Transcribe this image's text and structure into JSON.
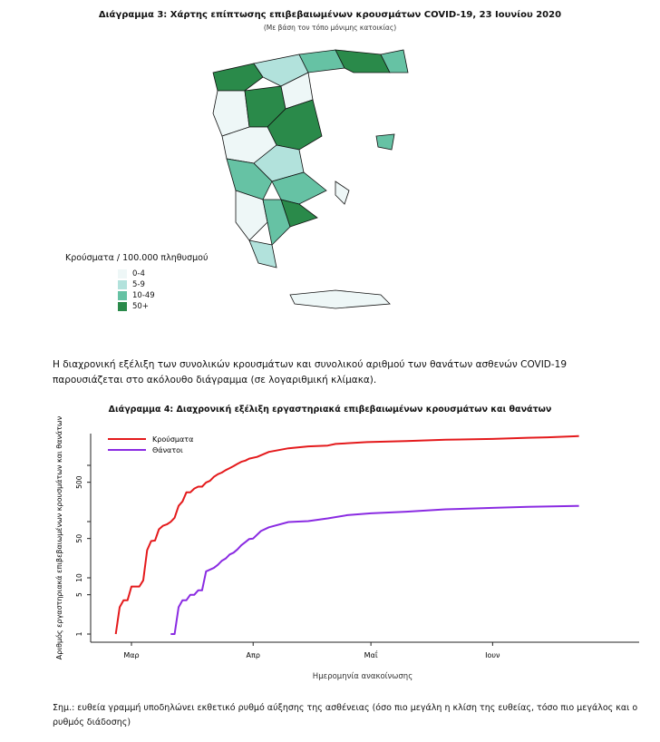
{
  "map_figure": {
    "title": "Διάγραμμα 3: Χάρτης επίπτωσης επιβεβαιωμένων κρουσμάτων COVID-19, 23 Ιουνίου 2020",
    "subtitle": "(Με βάση τον τόπο μόνιμης κατοικίας)",
    "legend_title": "Κρούσματα / 100.000 πληθυσμού",
    "legend": [
      {
        "label": "0-4",
        "color": "#eef7f7"
      },
      {
        "label": "5-9",
        "color": "#b2e2dc"
      },
      {
        "label": "10-49",
        "color": "#66c2a4"
      },
      {
        "label": "50+",
        "color": "#2a8a4a"
      }
    ]
  },
  "paragraph": "Η διαχρονική εξέλιξη των συνολικών κρουσμάτων και συνολικού αριθμού των θανάτων ασθενών COVID-19 παρουσιάζεται στο ακόλουθο διάγραμμα (σε λογαριθμική κλίμακα).",
  "chart_data": {
    "type": "line",
    "title": "Διάγραμμα 4: Διαχρονική εξέλιξη εργαστηριακά επιβεβαιωμένων κρουσμάτων και θανάτων",
    "xlabel": "Ημερομηνία ανακοίνωσης",
    "ylabel": "Αριθμός εργαστηριακά επιβεβαιωμένων κρουσμάτων και θανάτων",
    "y_scale": "log",
    "y_ticks": [
      1,
      5,
      10,
      50,
      100,
      500,
      1000
    ],
    "y_tick_labels": [
      "1",
      "5",
      "10",
      "50",
      "",
      "500",
      ""
    ],
    "x_ticks": [
      "2020-03-01",
      "2020-04-01",
      "2020-05-01",
      "2020-06-01"
    ],
    "x_tick_labels": [
      "Μαρ",
      "Απρ",
      "Μαΐ",
      "Ιουν"
    ],
    "legend_position": "top-left",
    "grid": false,
    "series": [
      {
        "name": "Κρούσματα",
        "color": "#e41a1c",
        "points": [
          [
            "2020-02-26",
            1
          ],
          [
            "2020-02-27",
            3
          ],
          [
            "2020-02-28",
            4
          ],
          [
            "2020-02-29",
            4
          ],
          [
            "2020-03-01",
            7
          ],
          [
            "2020-03-03",
            7
          ],
          [
            "2020-03-04",
            9
          ],
          [
            "2020-03-05",
            31
          ],
          [
            "2020-03-06",
            45
          ],
          [
            "2020-03-07",
            46
          ],
          [
            "2020-03-08",
            73
          ],
          [
            "2020-03-09",
            84
          ],
          [
            "2020-03-10",
            89
          ],
          [
            "2020-03-11",
            99
          ],
          [
            "2020-03-12",
            117
          ],
          [
            "2020-03-13",
            190
          ],
          [
            "2020-03-14",
            228
          ],
          [
            "2020-03-15",
            331
          ],
          [
            "2020-03-16",
            331
          ],
          [
            "2020-03-17",
            387
          ],
          [
            "2020-03-18",
            418
          ],
          [
            "2020-03-19",
            418
          ],
          [
            "2020-03-20",
            495
          ],
          [
            "2020-03-21",
            530
          ],
          [
            "2020-03-22",
            624
          ],
          [
            "2020-03-23",
            695
          ],
          [
            "2020-03-24",
            743
          ],
          [
            "2020-03-25",
            821
          ],
          [
            "2020-03-26",
            892
          ],
          [
            "2020-03-27",
            966
          ],
          [
            "2020-03-28",
            1061
          ],
          [
            "2020-03-29",
            1156
          ],
          [
            "2020-03-30",
            1212
          ],
          [
            "2020-03-31",
            1314
          ],
          [
            "2020-04-02",
            1415
          ],
          [
            "2020-04-05",
            1735
          ],
          [
            "2020-04-10",
            2011
          ],
          [
            "2020-04-15",
            2170
          ],
          [
            "2020-04-20",
            2245
          ],
          [
            "2020-04-22",
            2401
          ],
          [
            "2020-04-30",
            2591
          ],
          [
            "2020-05-10",
            2710
          ],
          [
            "2020-05-20",
            2850
          ],
          [
            "2020-06-01",
            2952
          ],
          [
            "2020-06-10",
            3088
          ],
          [
            "2020-06-15",
            3148
          ],
          [
            "2020-06-23",
            3302
          ]
        ]
      },
      {
        "name": "Θάνατοι",
        "color": "#8a2be2",
        "points": [
          [
            "2020-03-11",
            1
          ],
          [
            "2020-03-12",
            1
          ],
          [
            "2020-03-13",
            3
          ],
          [
            "2020-03-14",
            4
          ],
          [
            "2020-03-15",
            4
          ],
          [
            "2020-03-16",
            5
          ],
          [
            "2020-03-17",
            5
          ],
          [
            "2020-03-18",
            6
          ],
          [
            "2020-03-19",
            6
          ],
          [
            "2020-03-20",
            13
          ],
          [
            "2020-03-22",
            15
          ],
          [
            "2020-03-23",
            17
          ],
          [
            "2020-03-24",
            20
          ],
          [
            "2020-03-25",
            22
          ],
          [
            "2020-03-26",
            26
          ],
          [
            "2020-03-27",
            28
          ],
          [
            "2020-03-28",
            32
          ],
          [
            "2020-03-29",
            38
          ],
          [
            "2020-03-30",
            43
          ],
          [
            "2020-03-31",
            49
          ],
          [
            "2020-04-01",
            50
          ],
          [
            "2020-04-03",
            68
          ],
          [
            "2020-04-05",
            79
          ],
          [
            "2020-04-10",
            98
          ],
          [
            "2020-04-15",
            102
          ],
          [
            "2020-04-20",
            114
          ],
          [
            "2020-04-25",
            130
          ],
          [
            "2020-05-01",
            140
          ],
          [
            "2020-05-10",
            150
          ],
          [
            "2020-05-20",
            165
          ],
          [
            "2020-06-01",
            175
          ],
          [
            "2020-06-10",
            183
          ],
          [
            "2020-06-23",
            190
          ]
        ]
      }
    ]
  },
  "note": "Σημ.: ευθεία γραμμή υποδηλώνει εκθετικό ρυθμό αύξησης της ασθένειας (όσο πιο μεγάλη η κλίση της ευθείας, τόσο πιο μεγάλος και ο ρυθμός διάδοσης)"
}
